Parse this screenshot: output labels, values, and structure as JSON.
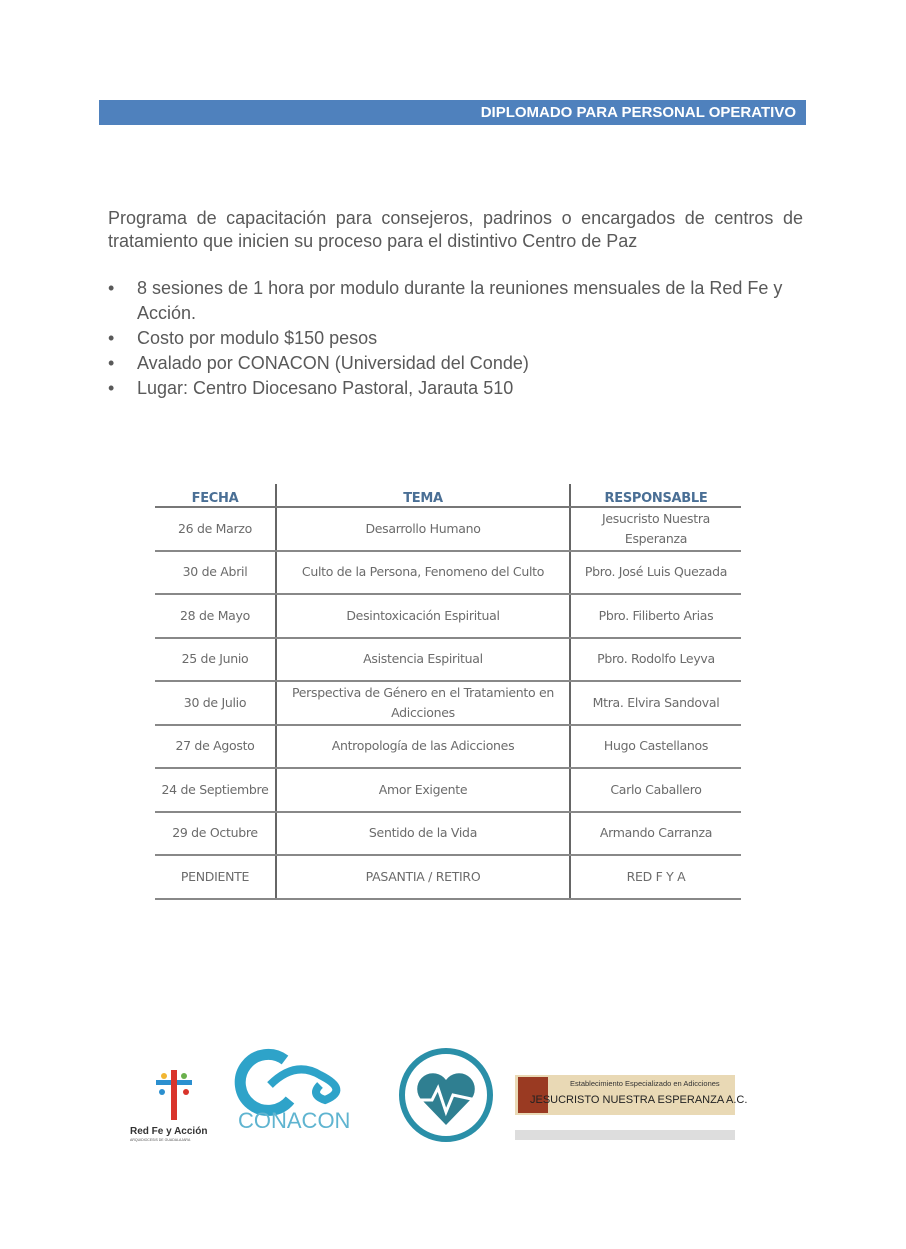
{
  "banner": "DIPLOMADO PARA PERSONAL OPERATIVO",
  "intro": "Programa de capacitación para consejeros, padrinos o encargados de centros de tratamiento que inicien su proceso para el distintivo Centro de Paz",
  "bullets": [
    "8 sesiones de 1 hora por modulo durante la reuniones mensuales de la Red Fe y Acción.",
    "Costo por modulo $150 pesos",
    "Avalado por CONACON (Universidad del Conde)",
    "Lugar: Centro Diocesano Pastoral, Jarauta 510"
  ],
  "table": {
    "headers": [
      "FECHA",
      "TEMA",
      "RESPONSABLE"
    ],
    "rows": [
      [
        "26 de Marzo",
        "Desarrollo Humano",
        "Jesucristo Nuestra Esperanza"
      ],
      [
        "30 de Abril",
        "Culto de la Persona, Fenomeno del Culto",
        "Pbro. José Luis Quezada"
      ],
      [
        "28 de Mayo",
        "Desintoxicación Espiritual",
        "Pbro. Filiberto Arias"
      ],
      [
        "25 de Junio",
        "Asistencia Espiritual",
        "Pbro. Rodolfo Leyva"
      ],
      [
        "30 de Julio",
        "Perspectiva  de Género en el Tratamiento en Adicciones",
        "Mtra. Elvira Sandoval"
      ],
      [
        "27 de Agosto",
        "Antropología de las Adicciones",
        "Hugo Castellanos"
      ],
      [
        "24 de Septiembre",
        "Amor Exigente",
        "Carlo Caballero"
      ],
      [
        "29 de Octubre",
        "Sentido de la Vida",
        "Armando Carranza"
      ],
      [
        "PENDIENTE",
        "PASANTIA / RETIRO",
        "RED F Y A"
      ]
    ]
  },
  "logos": {
    "red_fe": "Red Fe y Acción",
    "red_fe_sub": "ARQUIDIOCESIS DE GUADALAJARA",
    "conacon": "CONACON",
    "jne_top": "Establecimiento Especializado en Adicciones",
    "jne_main": "JESUCRISTO NUESTRA ESPERANZA A.C."
  },
  "colors": {
    "banner": "#4f81bd",
    "header_text": "#4a6f95",
    "conacon": "#2ea3c9"
  }
}
